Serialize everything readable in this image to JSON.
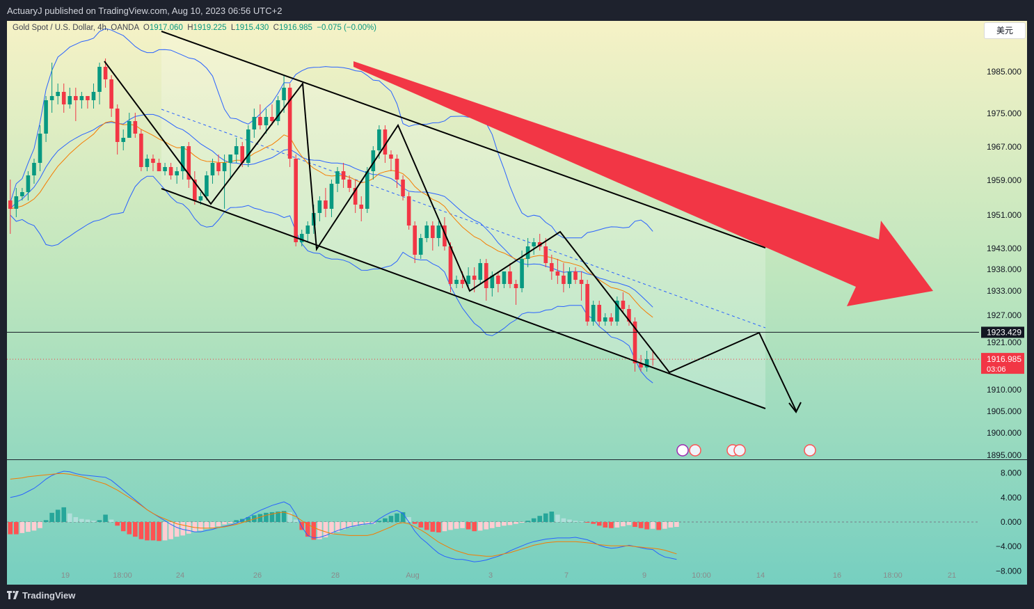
{
  "header": {
    "publisher_line": "ActuaryJ published on TradingView.com, Aug 10, 2023 06:56 UTC+2"
  },
  "symbol": {
    "name": "Gold Spot / U.S. Dollar, 4h, OANDA",
    "open_label": "O",
    "open": "1917.060",
    "high_label": "H",
    "high": "1919.225",
    "low_label": "L",
    "low": "1915.430",
    "close_label": "C",
    "close": "1916.985",
    "change": "−0.075 (−0.00%)"
  },
  "currency_button": "美元",
  "price_axis": {
    "ticks": [
      "1985.000",
      "1975.000",
      "1967.000",
      "1959.000",
      "1951.000",
      "1943.000",
      "1938.000",
      "1933.000",
      "1927.000",
      "1921.000",
      "1910.000",
      "1905.000",
      "1900.000",
      "1895.000"
    ],
    "horizontal_line_label": "1923.429",
    "last_price_label": "1916.985",
    "countdown_label": "03:06"
  },
  "macd_axis": {
    "ticks": [
      "8.000",
      "4.000",
      "0.000",
      "−4.000",
      "−8.000"
    ]
  },
  "time_axis": {
    "ticks": [
      "19",
      "18:00",
      "24",
      "26",
      "28",
      "Aug",
      "3",
      "7",
      "9",
      "10:00",
      "14",
      "16",
      "18:00",
      "21"
    ]
  },
  "footer": {
    "brand": "TradingView"
  },
  "colors": {
    "bull": "#089981",
    "bear": "#f23645",
    "bb": "#2962ff",
    "ema": "#f57c00",
    "arrow": "#f23645",
    "hist_pos_strong": "#26a69a",
    "hist_pos_weak": "#b2dfdb",
    "hist_neg_strong": "#ff5252",
    "hist_neg_weak": "#ffcdd2"
  },
  "chart_data": [
    {
      "type": "candlestick",
      "title": "Gold Spot / U.S. Dollar, 4h, OANDA",
      "ylim": [
        1893,
        1998
      ],
      "candles": [
        {
          "o": 1955,
          "h": 1960,
          "l": 1947,
          "c": 1953
        },
        {
          "o": 1953,
          "h": 1958,
          "l": 1951,
          "c": 1956
        },
        {
          "o": 1956,
          "h": 1958,
          "l": 1955,
          "c": 1957
        },
        {
          "o": 1957,
          "h": 1962,
          "l": 1955,
          "c": 1961
        },
        {
          "o": 1961,
          "h": 1965,
          "l": 1959,
          "c": 1964
        },
        {
          "o": 1964,
          "h": 1973,
          "l": 1962,
          "c": 1971
        },
        {
          "o": 1971,
          "h": 1980,
          "l": 1969,
          "c": 1979
        },
        {
          "o": 1979,
          "h": 1988,
          "l": 1976,
          "c": 1980
        },
        {
          "o": 1980,
          "h": 1983,
          "l": 1978,
          "c": 1981
        },
        {
          "o": 1981,
          "h": 1983,
          "l": 1976,
          "c": 1978
        },
        {
          "o": 1978,
          "h": 1982,
          "l": 1977,
          "c": 1980
        },
        {
          "o": 1980,
          "h": 1982,
          "l": 1974,
          "c": 1979
        },
        {
          "o": 1979,
          "h": 1981,
          "l": 1977,
          "c": 1980
        },
        {
          "o": 1980,
          "h": 1980,
          "l": 1977,
          "c": 1979
        },
        {
          "o": 1979,
          "h": 1983,
          "l": 1977,
          "c": 1981
        },
        {
          "o": 1981,
          "h": 1988,
          "l": 1978,
          "c": 1987
        },
        {
          "o": 1987,
          "h": 1989,
          "l": 1982,
          "c": 1984
        },
        {
          "o": 1984,
          "h": 1985,
          "l": 1975,
          "c": 1977
        },
        {
          "o": 1977,
          "h": 1978,
          "l": 1966,
          "c": 1969
        },
        {
          "o": 1969,
          "h": 1972,
          "l": 1967,
          "c": 1970
        },
        {
          "o": 1970,
          "h": 1976,
          "l": 1970,
          "c": 1974
        },
        {
          "o": 1974,
          "h": 1976,
          "l": 1970,
          "c": 1971
        },
        {
          "o": 1971,
          "h": 1972,
          "l": 1962,
          "c": 1963
        },
        {
          "o": 1963,
          "h": 1966,
          "l": 1962,
          "c": 1965
        },
        {
          "o": 1965,
          "h": 1966,
          "l": 1962,
          "c": 1964
        },
        {
          "o": 1964,
          "h": 1965,
          "l": 1962,
          "c": 1962
        },
        {
          "o": 1962,
          "h": 1964,
          "l": 1961,
          "c": 1963
        },
        {
          "o": 1963,
          "h": 1964,
          "l": 1960,
          "c": 1961
        },
        {
          "o": 1961,
          "h": 1963,
          "l": 1959,
          "c": 1962
        },
        {
          "o": 1962,
          "h": 1968,
          "l": 1960,
          "c": 1968
        },
        {
          "o": 1968,
          "h": 1969,
          "l": 1958,
          "c": 1960
        },
        {
          "o": 1960,
          "h": 1962,
          "l": 1954,
          "c": 1955
        },
        {
          "o": 1955,
          "h": 1957,
          "l": 1954,
          "c": 1956
        },
        {
          "o": 1956,
          "h": 1962,
          "l": 1955,
          "c": 1961
        },
        {
          "o": 1961,
          "h": 1965,
          "l": 1959,
          "c": 1964
        },
        {
          "o": 1964,
          "h": 1966,
          "l": 1961,
          "c": 1962
        },
        {
          "o": 1962,
          "h": 1966,
          "l": 1953,
          "c": 1964
        },
        {
          "o": 1964,
          "h": 1966,
          "l": 1960,
          "c": 1966
        },
        {
          "o": 1966,
          "h": 1970,
          "l": 1964,
          "c": 1968
        },
        {
          "o": 1968,
          "h": 1969,
          "l": 1963,
          "c": 1964
        },
        {
          "o": 1964,
          "h": 1973,
          "l": 1963,
          "c": 1972
        },
        {
          "o": 1972,
          "h": 1977,
          "l": 1970,
          "c": 1975
        },
        {
          "o": 1975,
          "h": 1978,
          "l": 1972,
          "c": 1973
        },
        {
          "o": 1973,
          "h": 1977,
          "l": 1971,
          "c": 1975
        },
        {
          "o": 1975,
          "h": 1978,
          "l": 1973,
          "c": 1974
        },
        {
          "o": 1974,
          "h": 1980,
          "l": 1973,
          "c": 1979
        },
        {
          "o": 1979,
          "h": 1985,
          "l": 1976,
          "c": 1982
        },
        {
          "o": 1982,
          "h": 1983,
          "l": 1963,
          "c": 1965
        },
        {
          "o": 1965,
          "h": 1966,
          "l": 1944,
          "c": 1945
        },
        {
          "o": 1945,
          "h": 1948,
          "l": 1944,
          "c": 1947
        },
        {
          "o": 1947,
          "h": 1950,
          "l": 1945,
          "c": 1949
        },
        {
          "o": 1949,
          "h": 1954,
          "l": 1947,
          "c": 1952
        },
        {
          "o": 1952,
          "h": 1956,
          "l": 1950,
          "c": 1955
        },
        {
          "o": 1955,
          "h": 1958,
          "l": 1951,
          "c": 1953
        },
        {
          "o": 1953,
          "h": 1960,
          "l": 1951,
          "c": 1959
        },
        {
          "o": 1959,
          "h": 1963,
          "l": 1957,
          "c": 1962
        },
        {
          "o": 1962,
          "h": 1964,
          "l": 1958,
          "c": 1960
        },
        {
          "o": 1960,
          "h": 1961,
          "l": 1957,
          "c": 1958
        },
        {
          "o": 1958,
          "h": 1960,
          "l": 1952,
          "c": 1954
        },
        {
          "o": 1954,
          "h": 1956,
          "l": 1950,
          "c": 1953
        },
        {
          "o": 1953,
          "h": 1963,
          "l": 1952,
          "c": 1962
        },
        {
          "o": 1962,
          "h": 1968,
          "l": 1960,
          "c": 1967
        },
        {
          "o": 1967,
          "h": 1973,
          "l": 1965,
          "c": 1972
        },
        {
          "o": 1972,
          "h": 1973,
          "l": 1964,
          "c": 1966
        },
        {
          "o": 1966,
          "h": 1967,
          "l": 1962,
          "c": 1965
        },
        {
          "o": 1965,
          "h": 1966,
          "l": 1958,
          "c": 1960
        },
        {
          "o": 1960,
          "h": 1961,
          "l": 1955,
          "c": 1956
        },
        {
          "o": 1956,
          "h": 1957,
          "l": 1948,
          "c": 1949
        },
        {
          "o": 1949,
          "h": 1950,
          "l": 1940,
          "c": 1942
        },
        {
          "o": 1942,
          "h": 1947,
          "l": 1941,
          "c": 1946
        },
        {
          "o": 1946,
          "h": 1950,
          "l": 1945,
          "c": 1949
        },
        {
          "o": 1949,
          "h": 1950,
          "l": 1943,
          "c": 1946
        },
        {
          "o": 1946,
          "h": 1950,
          "l": 1944,
          "c": 1949
        },
        {
          "o": 1949,
          "h": 1951,
          "l": 1943,
          "c": 1944
        },
        {
          "o": 1944,
          "h": 1945,
          "l": 1933,
          "c": 1935
        },
        {
          "o": 1935,
          "h": 1937,
          "l": 1934,
          "c": 1936
        },
        {
          "o": 1936,
          "h": 1938,
          "l": 1934,
          "c": 1935
        },
        {
          "o": 1935,
          "h": 1939,
          "l": 1934,
          "c": 1937
        },
        {
          "o": 1937,
          "h": 1939,
          "l": 1933,
          "c": 1936
        },
        {
          "o": 1936,
          "h": 1941,
          "l": 1935,
          "c": 1940
        },
        {
          "o": 1940,
          "h": 1941,
          "l": 1931,
          "c": 1934
        },
        {
          "o": 1934,
          "h": 1938,
          "l": 1932,
          "c": 1937
        },
        {
          "o": 1937,
          "h": 1938,
          "l": 1933,
          "c": 1935
        },
        {
          "o": 1935,
          "h": 1938,
          "l": 1934,
          "c": 1938
        },
        {
          "o": 1938,
          "h": 1940,
          "l": 1934,
          "c": 1935
        },
        {
          "o": 1935,
          "h": 1936,
          "l": 1930,
          "c": 1934
        },
        {
          "o": 1934,
          "h": 1943,
          "l": 1933,
          "c": 1941
        },
        {
          "o": 1941,
          "h": 1946,
          "l": 1939,
          "c": 1944
        },
        {
          "o": 1944,
          "h": 1946,
          "l": 1942,
          "c": 1945
        },
        {
          "o": 1945,
          "h": 1947,
          "l": 1943,
          "c": 1944
        },
        {
          "o": 1944,
          "h": 1946,
          "l": 1939,
          "c": 1940
        },
        {
          "o": 1940,
          "h": 1942,
          "l": 1936,
          "c": 1938
        },
        {
          "o": 1938,
          "h": 1941,
          "l": 1935,
          "c": 1937
        },
        {
          "o": 1937,
          "h": 1940,
          "l": 1933,
          "c": 1935
        },
        {
          "o": 1935,
          "h": 1939,
          "l": 1934,
          "c": 1938
        },
        {
          "o": 1938,
          "h": 1939,
          "l": 1935,
          "c": 1936
        },
        {
          "o": 1936,
          "h": 1938,
          "l": 1931,
          "c": 1935
        },
        {
          "o": 1935,
          "h": 1936,
          "l": 1925,
          "c": 1926
        },
        {
          "o": 1926,
          "h": 1931,
          "l": 1925,
          "c": 1930
        },
        {
          "o": 1930,
          "h": 1931,
          "l": 1925,
          "c": 1926
        },
        {
          "o": 1926,
          "h": 1928,
          "l": 1925,
          "c": 1927
        },
        {
          "o": 1927,
          "h": 1928,
          "l": 1925,
          "c": 1926
        },
        {
          "o": 1926,
          "h": 1932,
          "l": 1925,
          "c": 1931
        },
        {
          "o": 1931,
          "h": 1933,
          "l": 1928,
          "c": 1929
        },
        {
          "o": 1929,
          "h": 1930,
          "l": 1925,
          "c": 1926
        },
        {
          "o": 1926,
          "h": 1927,
          "l": 1914,
          "c": 1916
        },
        {
          "o": 1916,
          "h": 1918,
          "l": 1914,
          "c": 1915
        },
        {
          "o": 1915,
          "h": 1919,
          "l": 1914,
          "c": 1917
        },
        {
          "o": 1917.06,
          "h": 1919.225,
          "l": 1915.43,
          "c": 1916.985
        }
      ],
      "horizontal_line": 1923.429,
      "last_price": 1916.985
    },
    {
      "type": "bar",
      "title": "MACD",
      "ylim": [
        -10,
        10
      ],
      "histogram": [
        -2,
        -2,
        -1.8,
        -1.6,
        -1.4,
        -1,
        0.3,
        1.5,
        2,
        2.4,
        1.4,
        0.8,
        0.5,
        0.4,
        0.2,
        0.3,
        1.2,
        0.4,
        -0.6,
        -1.5,
        -2,
        -2.4,
        -2.8,
        -3,
        -3,
        -3.1,
        -3,
        -2.8,
        -2.4,
        -2.2,
        -1.9,
        -1.6,
        -1.4,
        -1.1,
        -0.9,
        -0.7,
        -0.4,
        -0.2,
        0.3,
        0.5,
        0.8,
        1.1,
        1.3,
        1.5,
        1.6,
        1.7,
        1.8,
        1.6,
        0.4,
        -1.3,
        -2.4,
        -2.9,
        -2.8,
        -2.5,
        -2,
        -1.6,
        -1.2,
        -0.9,
        -0.7,
        -0.5,
        -0.4,
        -0.3,
        0.2,
        0.6,
        1,
        1.4,
        1.6,
        0.8,
        -0.3,
        -0.9,
        -1.3,
        -1.6,
        -1.7,
        -1.5,
        -1.3,
        -1.1,
        -1,
        -1.2,
        -1.5,
        -1.4,
        -1.2,
        -1,
        -0.8,
        -0.6,
        -0.5,
        -0.3,
        -0.1,
        0.2,
        0.6,
        1,
        1.4,
        1.7,
        1.2,
        0.6,
        0.4,
        0.2,
        0.1,
        -0.1,
        -0.3,
        -0.6,
        -0.9,
        -1,
        -0.9,
        -0.7,
        -0.5,
        -0.8,
        -1,
        -1.2,
        -1.1,
        -1.3,
        -1.1,
        -0.9,
        -0.8
      ],
      "macd": [
        4,
        4.2,
        4.5,
        5,
        5.5,
        6.2,
        7,
        7.6,
        8,
        8.3,
        8.2,
        7.9,
        7.7,
        7.6,
        7.5,
        7.4,
        7.3,
        6.8,
        6,
        5.2,
        4.4,
        3.6,
        2.8,
        2,
        1.4,
        0.8,
        0.2,
        -0.4,
        -0.9,
        -1.2,
        -1.4,
        -1.6,
        -1.6,
        -1.4,
        -1.2,
        -0.9,
        -0.7,
        -0.5,
        -0.2,
        0.3,
        0.8,
        1.4,
        1.9,
        2.3,
        2.7,
        3,
        3.3,
        2.8,
        1.3,
        -0.8,
        -2.2,
        -2.6,
        -2.5,
        -2.2,
        -1.8,
        -1.4,
        -1.1,
        -0.8,
        -0.6,
        -0.4,
        -0.3,
        -0.2,
        0.5,
        1.1,
        1.6,
        1.9,
        1.4,
        0,
        -1.5,
        -2.6,
        -3.4,
        -4.3,
        -5.1,
        -5.6,
        -5.9,
        -6.1,
        -6.1,
        -6.3,
        -6.5,
        -6.4,
        -6.2,
        -5.9,
        -5.6,
        -5.2,
        -4.7,
        -4.3,
        -3.9,
        -3.5,
        -3.2,
        -3,
        -2.8,
        -2.7,
        -2.6,
        -2.6,
        -2.6,
        -2.5,
        -2.7,
        -2.9,
        -3.3,
        -3.8,
        -4.1,
        -4.3,
        -4.2,
        -4,
        -3.8,
        -4,
        -4.2,
        -4.4,
        -4.5,
        -5.2,
        -5.7,
        -5.9,
        -6.1
      ],
      "signal": [
        7,
        7.1,
        7.2,
        7.4,
        7.5,
        7.6,
        7.7,
        7.8,
        7.9,
        7.9,
        7.8,
        7.6,
        7.4,
        7.1,
        6.8,
        6.5,
        6.2,
        5.7,
        5.2,
        4.6,
        4,
        3.4,
        2.7,
        2,
        1.4,
        0.9,
        0.5,
        0.1,
        -0.3,
        -0.5,
        -0.7,
        -0.9,
        -1,
        -1,
        -1,
        -0.9,
        -0.8,
        -0.6,
        -0.4,
        -0.1,
        0.2,
        0.5,
        0.8,
        1.1,
        1.3,
        1.5,
        1.6,
        1.3,
        0.9,
        0.2,
        -0.4,
        -0.9,
        -1.3,
        -1.6,
        -1.9,
        -2,
        -2.1,
        -2.2,
        -2.2,
        -2.2,
        -2.2,
        -2,
        -1.6,
        -1.2,
        -0.8,
        -0.3,
        -0.1,
        -0.3,
        -0.8,
        -1.3,
        -1.9,
        -2.6,
        -3.3,
        -3.8,
        -4.3,
        -4.7,
        -5,
        -5.3,
        -5.4,
        -5.5,
        -5.6,
        -5.6,
        -5.4,
        -5.2,
        -5,
        -4.7,
        -4.4,
        -4.1,
        -3.8,
        -3.6,
        -3.4,
        -3.3,
        -3.2,
        -3.2,
        -3.2,
        -3.2,
        -3.3,
        -3.4,
        -3.5,
        -3.7,
        -3.8,
        -3.9,
        -3.9,
        -3.9,
        -3.9,
        -4,
        -4.1,
        -4.2,
        -4.3,
        -4.4,
        -4.6,
        -4.9,
        -5.2
      ]
    }
  ]
}
